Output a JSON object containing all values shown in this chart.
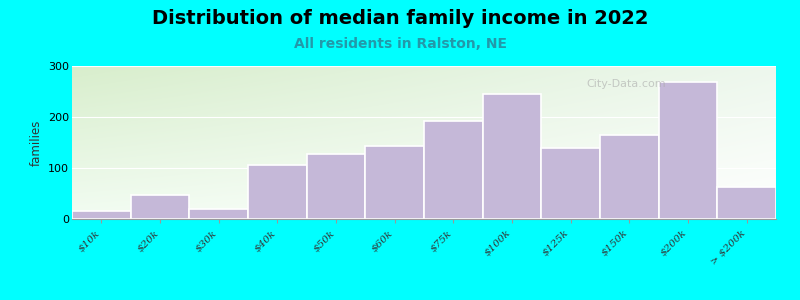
{
  "title": "Distribution of median family income in 2022",
  "subtitle": "All residents in Ralston, NE",
  "ylabel": "families",
  "background_color": "#00FFFF",
  "bar_color": "#c5b8d8",
  "bar_edge_color": "#ffffff",
  "categories": [
    "$10k",
    "$20k",
    "$30k",
    "$40k",
    "$50k",
    "$60k",
    "$75k",
    "$100k",
    "$125k",
    "$150k",
    "$200k",
    "> $200k"
  ],
  "values": [
    15,
    47,
    20,
    105,
    128,
    143,
    192,
    245,
    140,
    165,
    268,
    62
  ],
  "ylim": [
    0,
    300
  ],
  "yticks": [
    0,
    100,
    200,
    300
  ],
  "title_fontsize": 14,
  "subtitle_fontsize": 10,
  "subtitle_color": "#2299aa",
  "watermark_text": "City-Data.com",
  "figsize": [
    8.0,
    3.0
  ],
  "dpi": 100
}
